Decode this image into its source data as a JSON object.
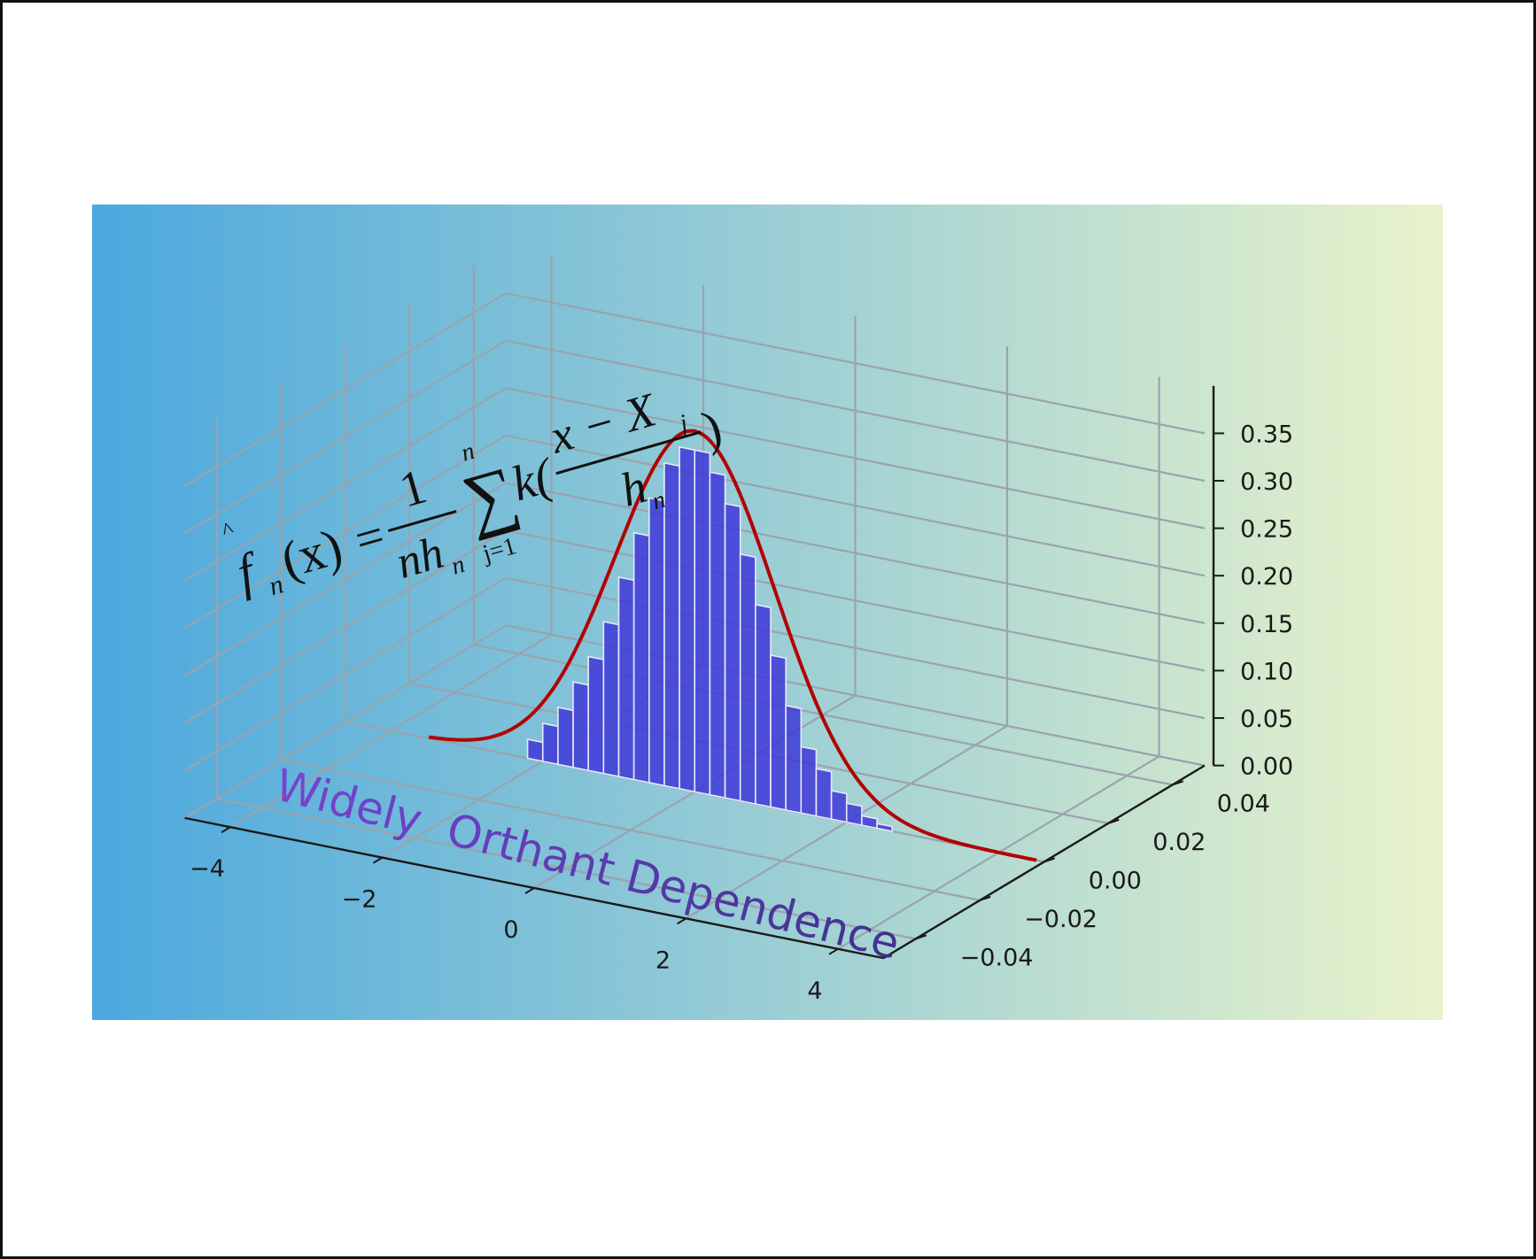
{
  "chart_data": {
    "type": "bar",
    "subtype": "3d-histogram-with-density-curve",
    "annotation": "Widely  Orthant Dependence",
    "formula": {
      "lhs": "f",
      "hat": "^",
      "lhs_sub": "n",
      "lhs_arg": "(x)",
      "equals": "=",
      "frac_num": "1",
      "frac_den": "nh",
      "frac_den_sub": "n",
      "sum": "∑",
      "sum_upper": "n",
      "sum_lower": "j=1",
      "kernel": "k(",
      "inner_num": "x − X",
      "inner_num_sub": "j",
      "inner_den": "h",
      "inner_den_sub": "n",
      "close": ")"
    },
    "x_axis": {
      "ticks": [
        -4,
        -2,
        0,
        2,
        4
      ],
      "tick_labels": [
        "−4",
        "−2",
        "0",
        "2",
        "4"
      ],
      "range": [
        -4.6,
        4.6
      ]
    },
    "y_axis": {
      "ticks": [
        -0.04,
        -0.02,
        0.0,
        0.02,
        0.04
      ],
      "tick_labels": [
        "−0.04",
        "−0.02",
        "0.00",
        "0.02",
        "0.04"
      ],
      "range": [
        -0.05,
        0.05
      ]
    },
    "z_axis": {
      "ticks": [
        0.0,
        0.05,
        0.1,
        0.15,
        0.2,
        0.25,
        0.3,
        0.35
      ],
      "tick_labels": [
        "0.00",
        "0.05",
        "0.10",
        "0.15",
        "0.20",
        "0.25",
        "0.30",
        "0.35"
      ],
      "range": [
        0,
        0.4
      ]
    },
    "bins": {
      "centers": [
        -2.1,
        -1.9,
        -1.7,
        -1.5,
        -1.3,
        -1.1,
        -0.9,
        -0.7,
        -0.5,
        -0.3,
        -0.1,
        0.1,
        0.3,
        0.5,
        0.7,
        0.9,
        1.1,
        1.3,
        1.5,
        1.7,
        1.9,
        2.1,
        2.3,
        2.5
      ],
      "heights": [
        0.02,
        0.04,
        0.06,
        0.09,
        0.12,
        0.16,
        0.21,
        0.26,
        0.3,
        0.34,
        0.36,
        0.36,
        0.34,
        0.31,
        0.26,
        0.21,
        0.16,
        0.11,
        0.07,
        0.05,
        0.03,
        0.02,
        0.01,
        0.005
      ],
      "color": "#3a32d8"
    },
    "density_curve": {
      "mean": 0.0,
      "sd": 1.05,
      "x_range": [
        -3.5,
        4.5
      ],
      "color": "#b30000"
    },
    "grid": true,
    "background_gradient": [
      "#4ba8de",
      "#e9f3cb"
    ],
    "banner_color": "#5a2fb5"
  }
}
